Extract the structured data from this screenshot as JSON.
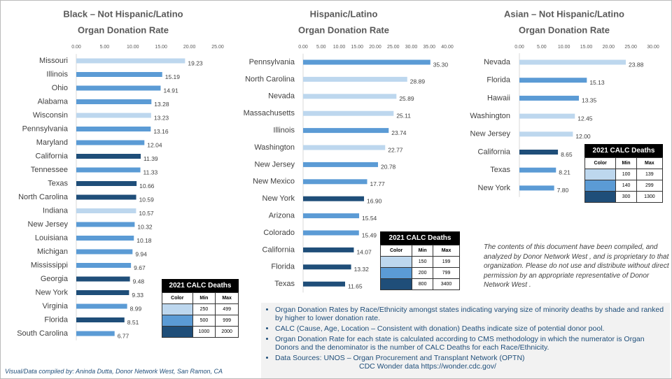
{
  "chart_data": [
    {
      "type": "bar",
      "orientation": "horizontal",
      "title": "Black – Not Hispanic/Latino",
      "subtitle": "Organ Donation Rate",
      "categories": [
        "Missouri",
        "Illinois",
        "Ohio",
        "Alabama",
        "Wisconsin",
        "Pennsylvania",
        "Maryland",
        "California",
        "Tennessee",
        "Texas",
        "North Carolina",
        "Indiana",
        "New Jersey",
        "Louisiana",
        "Michigan",
        "Mississippi",
        "Georgia",
        "New York",
        "Virginia",
        "Florida",
        "South Carolina"
      ],
      "values": [
        19.23,
        15.19,
        14.91,
        13.28,
        13.23,
        13.16,
        12.04,
        11.39,
        11.33,
        10.66,
        10.59,
        10.57,
        10.32,
        10.18,
        9.94,
        9.67,
        9.48,
        9.33,
        8.99,
        8.51,
        6.77
      ],
      "colors": [
        "#bdd7ee",
        "#5b9bd5",
        "#5b9bd5",
        "#5b9bd5",
        "#bdd7ee",
        "#5b9bd5",
        "#5b9bd5",
        "#1f4e79",
        "#5b9bd5",
        "#1f4e79",
        "#1f4e79",
        "#bdd7ee",
        "#5b9bd5",
        "#5b9bd5",
        "#5b9bd5",
        "#5b9bd5",
        "#1f4e79",
        "#1f4e79",
        "#5b9bd5",
        "#1f4e79",
        "#5b9bd5"
      ],
      "xlim": [
        0,
        25
      ],
      "xticks": [
        {
          "value": 0,
          "label": "0.00"
        },
        {
          "value": 5,
          "label": "5.00"
        },
        {
          "value": 10,
          "label": "10.00"
        },
        {
          "value": 15,
          "label": "15.00"
        },
        {
          "value": 20,
          "label": "20.00"
        },
        {
          "value": 25,
          "label": "25.00"
        }
      ],
      "grid": false,
      "legend_table": {
        "title": "2021 CALC Deaths",
        "headers": [
          "Color",
          "Min",
          "Max"
        ],
        "rows": [
          {
            "color": "#bdd7ee",
            "min": 250,
            "max": 499
          },
          {
            "color": "#5b9bd5",
            "min": 500,
            "max": 999
          },
          {
            "color": "#1f4e79",
            "min": 1000,
            "max": 2000
          }
        ]
      }
    },
    {
      "type": "bar",
      "orientation": "horizontal",
      "title": "Hispanic/Latino",
      "subtitle": "Organ Donation Rate",
      "categories": [
        "Pennsylvania",
        "North Carolina",
        "Nevada",
        "Massachusetts",
        "Illinois",
        "Washington",
        "New Jersey",
        "New Mexico",
        "New York",
        "Arizona",
        "Colorado",
        "California",
        "Florida",
        "Texas"
      ],
      "values": [
        35.3,
        28.89,
        25.89,
        25.11,
        23.74,
        22.77,
        20.78,
        17.77,
        16.9,
        15.54,
        15.49,
        14.07,
        13.32,
        11.65
      ],
      "value_labels": [
        "35.30",
        "28.89",
        "25.89",
        "25.11",
        "23.74",
        "22.77",
        "20.78",
        "17.77",
        "16.90",
        "15.54",
        "15.49",
        "14.07",
        "13.32",
        "11.65"
      ],
      "colors": [
        "#5b9bd5",
        "#bdd7ee",
        "#bdd7ee",
        "#bdd7ee",
        "#5b9bd5",
        "#bdd7ee",
        "#5b9bd5",
        "#5b9bd5",
        "#1f4e79",
        "#5b9bd5",
        "#5b9bd5",
        "#1f4e79",
        "#1f4e79",
        "#1f4e79"
      ],
      "xlim": [
        0,
        40
      ],
      "xticks": [
        {
          "value": 0,
          "label": "0.00"
        },
        {
          "value": 5,
          "label": "5.00"
        },
        {
          "value": 10,
          "label": "10.00"
        },
        {
          "value": 15,
          "label": "15.00"
        },
        {
          "value": 20,
          "label": "20.00"
        },
        {
          "value": 25,
          "label": "25.00"
        },
        {
          "value": 30,
          "label": "30.00"
        },
        {
          "value": 35,
          "label": "35.00"
        },
        {
          "value": 40,
          "label": "40.00"
        }
      ],
      "grid": false,
      "legend_table": {
        "title": "2021 CALC Deaths",
        "headers": [
          "Color",
          "Min",
          "Max"
        ],
        "rows": [
          {
            "color": "#bdd7ee",
            "min": 150,
            "max": 199
          },
          {
            "color": "#5b9bd5",
            "min": 200,
            "max": 799
          },
          {
            "color": "#1f4e79",
            "min": 800,
            "max": 3400
          }
        ]
      }
    },
    {
      "type": "bar",
      "orientation": "horizontal",
      "title": "Asian – Not Hispanic/Latino",
      "subtitle": "Organ Donation Rate",
      "categories": [
        "Nevada",
        "Florida",
        "Hawaii",
        "Washington",
        "New Jersey",
        "California",
        "Texas",
        "New York"
      ],
      "values": [
        23.88,
        15.13,
        13.35,
        12.45,
        12.0,
        8.65,
        8.21,
        7.8
      ],
      "value_labels": [
        "23.88",
        "15.13",
        "13.35",
        "12.45",
        "12.00",
        "8.65",
        "8.21",
        "7.80"
      ],
      "colors": [
        "#bdd7ee",
        "#5b9bd5",
        "#5b9bd5",
        "#bdd7ee",
        "#bdd7ee",
        "#1f4e79",
        "#5b9bd5",
        "#5b9bd5"
      ],
      "xlim": [
        0,
        30
      ],
      "xticks": [
        {
          "value": 0,
          "label": "0.00"
        },
        {
          "value": 5,
          "label": "5.00"
        },
        {
          "value": 10,
          "label": "10.00"
        },
        {
          "value": 15,
          "label": "15.00"
        },
        {
          "value": 20,
          "label": "20.00"
        },
        {
          "value": 25,
          "label": "25.00"
        },
        {
          "value": 30,
          "label": "30.00"
        }
      ],
      "grid": false,
      "legend_table": {
        "title": "2021 CALC Deaths",
        "headers": [
          "Color",
          "Min",
          "Max"
        ],
        "rows": [
          {
            "color": "#bdd7ee",
            "min": 100,
            "max": 139
          },
          {
            "color": "#5b9bd5",
            "min": 140,
            "max": 299
          },
          {
            "color": "#1f4e79",
            "min": 300,
            "max": 1300
          }
        ]
      }
    }
  ],
  "note": "The contents of this document have been compiled, and analyzed by Donor Network West , and is proprietary to that organization. Please do not use and distribute without direct permission by an appropriate representative of Donor Network West .",
  "bullets": [
    "Organ Donation Rates by Race/Ethnicity amongst states indicating varying size of minority deaths by shade and ranked by higher to lower donation rate.",
    "CALC (Cause, Age, Location – Consistent with donation) Deaths indicate size of potential donor pool.",
    "Organ Donation Rate for each state is calculated according to CMS methodology in which the numerator is Organ Donors and the denominator is the number of CALC Deaths for each Race/Ethnicity."
  ],
  "sources": [
    "Data Sources: UNOS – Organ Procurement and Transplant Network (OPTN)",
    "CDC Wonder data https://wonder.cdc.gov/"
  ],
  "footer": "Visual/Data compiled by: Aninda Dutta, Donor Network West, San Ramon, CA"
}
